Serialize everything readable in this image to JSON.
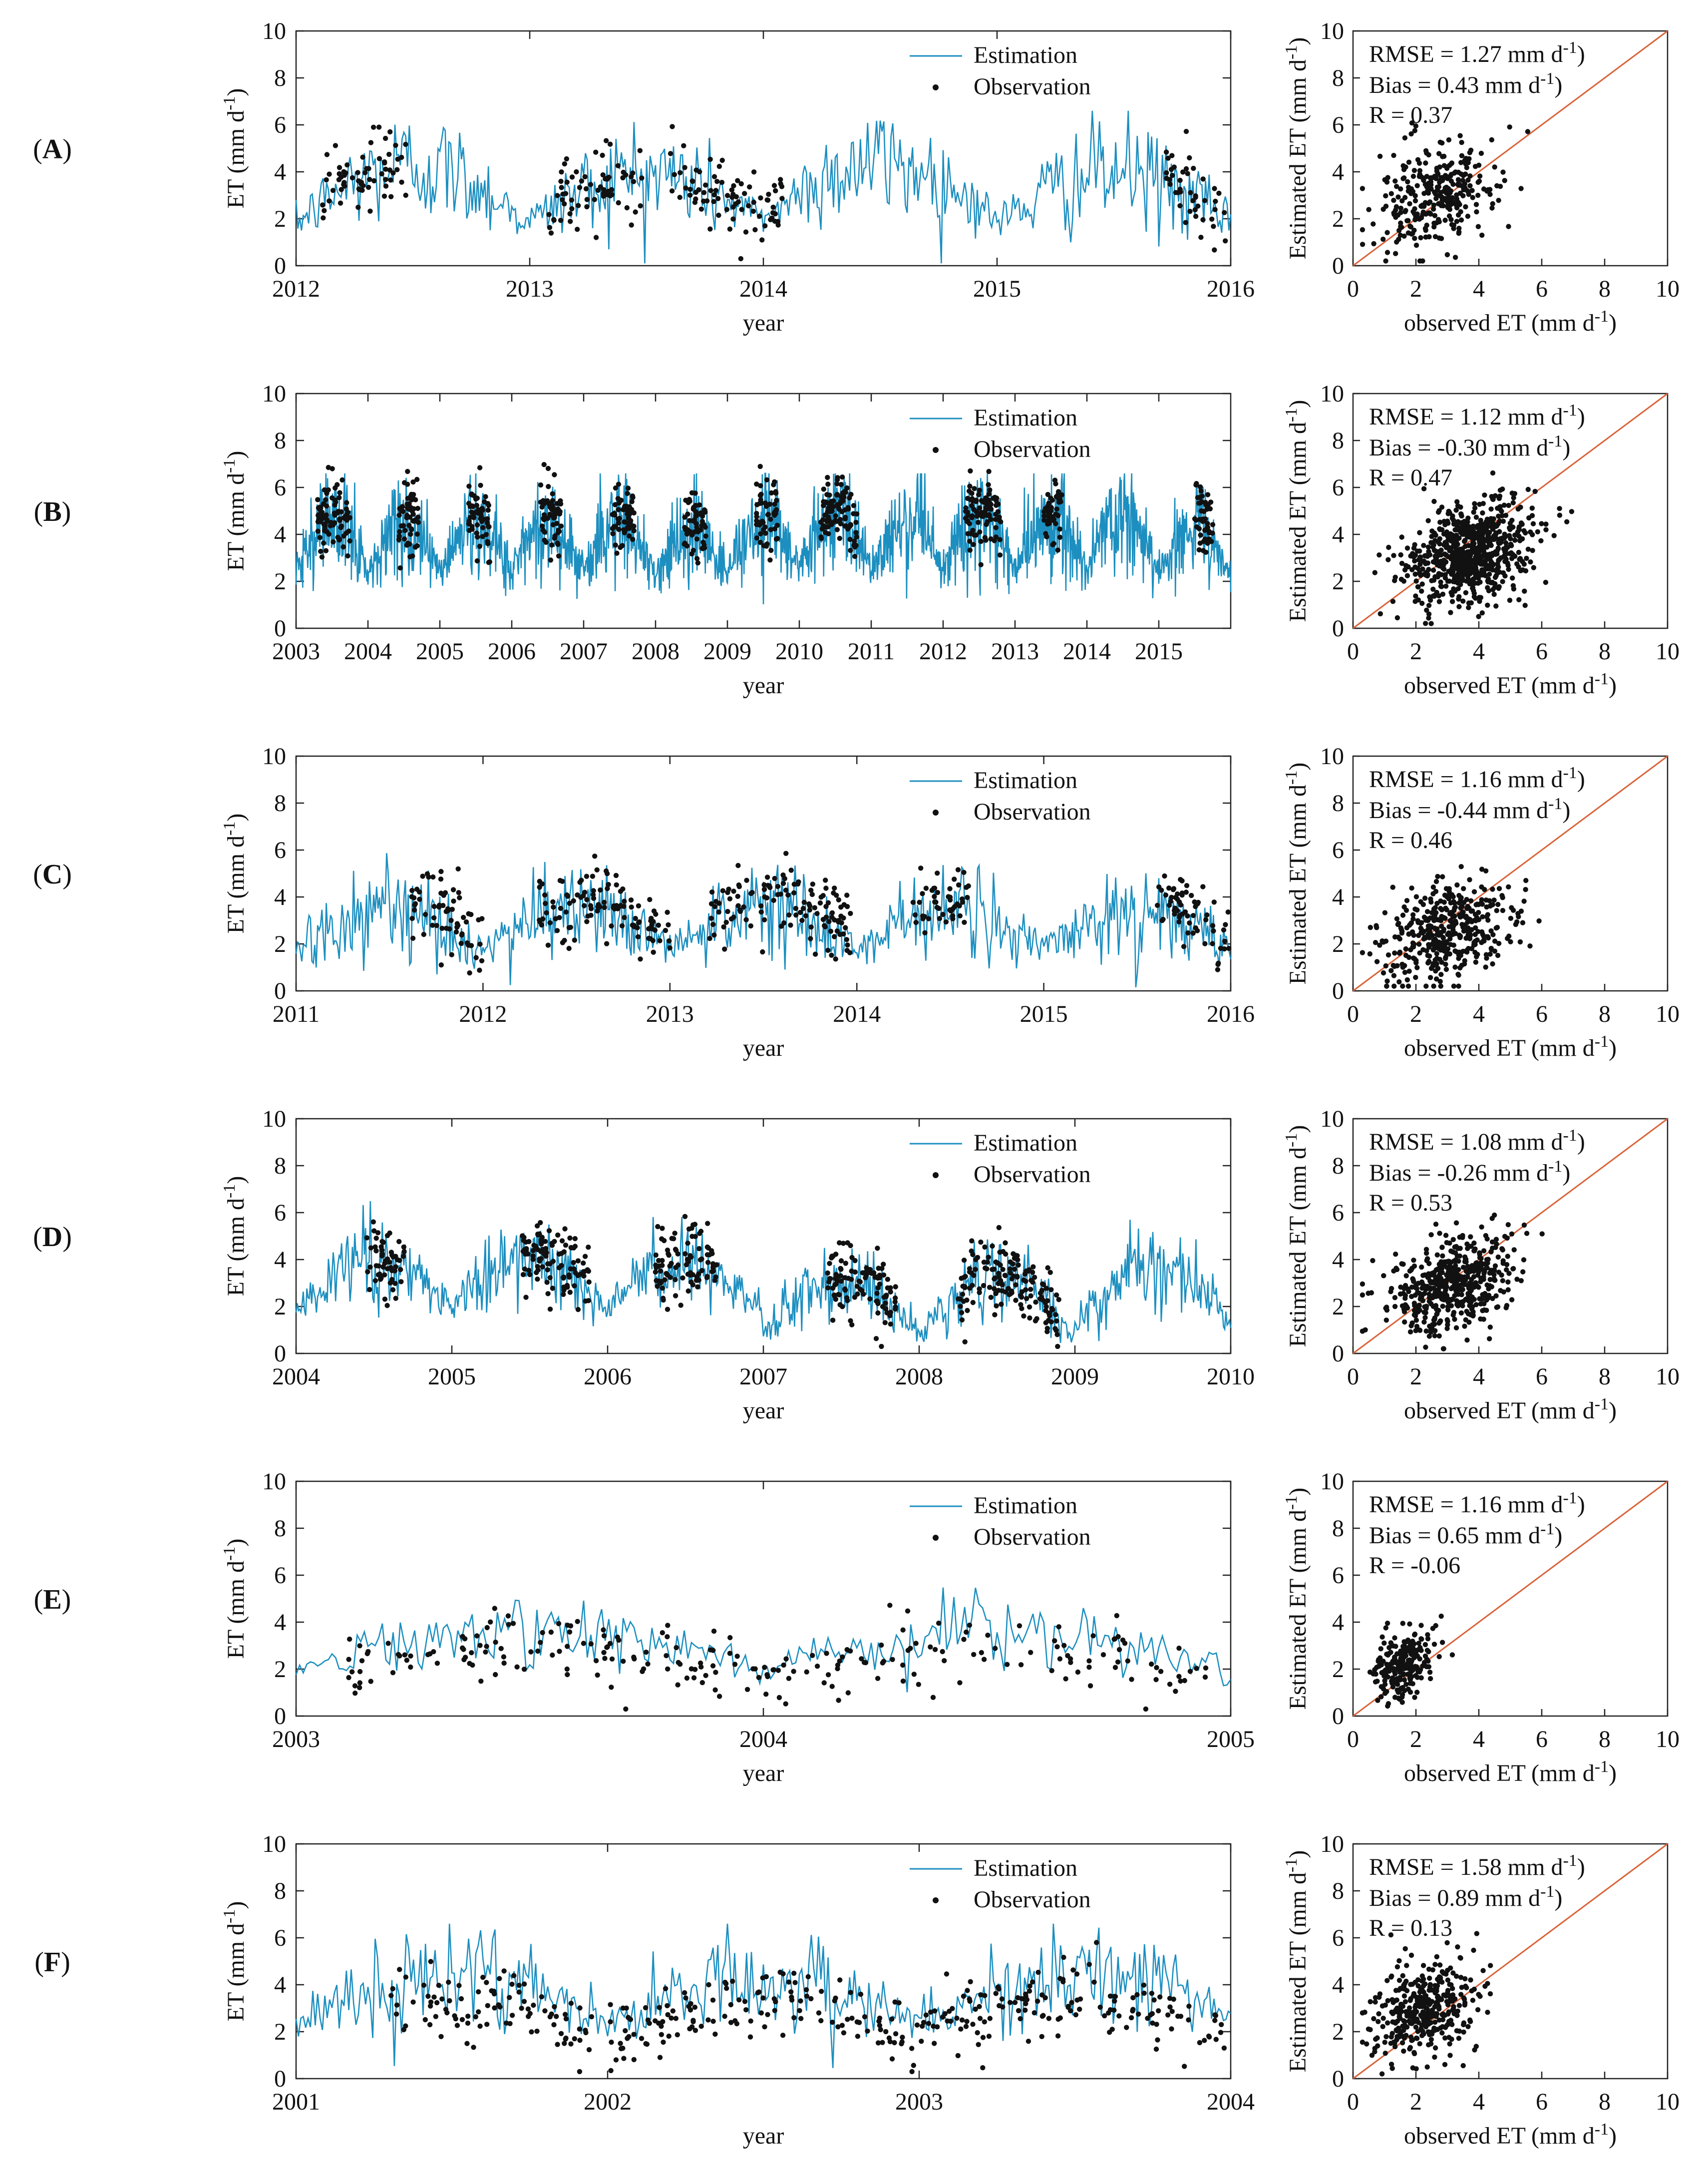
{
  "figure": {
    "ts_ylabel": "ET (mm d",
    "ts_xlabel": "year",
    "sc_ylabel": "Estimated ET (mm d",
    "sc_xlabel": "observed ET (mm d",
    "unit_sup": "-1",
    "unit_close": ")",
    "legend_estimation": "Estimation",
    "legend_observation": "Observation",
    "colors": {
      "estimation": "#1c8fc0",
      "observation": "#111111",
      "one_to_one": "#d9643a",
      "axis": "#222222"
    }
  },
  "chart_data": [
    {
      "type": "line",
      "panel": "A",
      "title": "",
      "xlabel": "year",
      "ylabel": "ET (mm d-1)",
      "ylim": [
        0,
        10
      ],
      "yticks": [
        0,
        2,
        4,
        6,
        8,
        10
      ],
      "xticks": [
        "2012",
        "2013",
        "2014",
        "2015",
        "2016"
      ],
      "legend_position": "top-right",
      "series": [
        {
          "name": "Estimation",
          "style": "line",
          "seasonal": {
            "amp": [
              2.0,
              1.6,
              1.9,
              1.7
            ],
            "offset": [
              1.8,
              1.9,
              2.0,
              1.8
            ],
            "noise": 0.9
          }
        },
        {
          "name": "Observation",
          "style": "dots",
          "coverage": [
            [
              0.1,
              0.48
            ],
            [
              1.08,
              1.48
            ],
            [
              1.6,
              2.08
            ],
            [
              3.72,
              3.98
            ]
          ],
          "count": 260,
          "shift": 0.2
        }
      ],
      "stats": {
        "rmse": "RMSE = 1.27 mm d",
        "bias": "Bias = 0.43 mm d",
        "r": "R = 0.37"
      },
      "scatter": {
        "xlabel": "observed ET (mm d-1)",
        "ylabel": "Estimated ET (mm d-1)",
        "xlim": [
          0,
          10
        ],
        "ylim": [
          0,
          10
        ],
        "one_to_one": true,
        "center": [
          2.6,
          3.0
        ],
        "spread": [
          0.95,
          1.05
        ],
        "count": 320
      }
    },
    {
      "type": "line",
      "panel": "B",
      "title": "",
      "xlabel": "year",
      "ylabel": "ET (mm d-1)",
      "ylim": [
        0,
        10
      ],
      "yticks": [
        0,
        2,
        4,
        6,
        8,
        10
      ],
      "xticks": [
        "2003",
        "2004",
        "2005",
        "2006",
        "2007",
        "2008",
        "2009",
        "2010",
        "2011",
        "2012",
        "2013",
        "2014",
        "2015"
      ],
      "legend_position": "top-right",
      "series": [
        {
          "name": "Estimation",
          "style": "line",
          "seasonal": {
            "amp": [
              1.7,
              1.6,
              1.8,
              1.6,
              1.8,
              1.5,
              1.7,
              1.9,
              1.6,
              1.8,
              1.7,
              1.8,
              1.6
            ],
            "offset": [
              2.4,
              2.4,
              2.3,
              2.4,
              2.3,
              2.2,
              2.4,
              2.5,
              2.4,
              2.4,
              2.4,
              2.5,
              2.3
            ],
            "noise": 0.9
          }
        },
        {
          "name": "Observation",
          "style": "dots",
          "coverage": [
            [
              0.3,
              0.75
            ],
            [
              1.4,
              1.7
            ],
            [
              2.4,
              2.7
            ],
            [
              3.4,
              3.7
            ],
            [
              4.4,
              4.7
            ],
            [
              5.4,
              5.7
            ],
            [
              6.4,
              6.7
            ],
            [
              7.3,
              7.8
            ],
            [
              9.3,
              9.8
            ],
            [
              10.4,
              10.65
            ],
            [
              12.5,
              12.75
            ]
          ],
          "count": 700,
          "shift": 0.6
        }
      ],
      "stats": {
        "rmse": "RMSE = 1.12 mm d",
        "bias": "Bias = -0.30 mm d",
        "r": "R = 0.47"
      },
      "scatter": {
        "xlabel": "observed ET (mm d-1)",
        "ylabel": "Estimated ET (mm d-1)",
        "xlim": [
          0,
          10
        ],
        "ylim": [
          0,
          10
        ],
        "one_to_one": true,
        "center": [
          3.7,
          3.2
        ],
        "spread": [
          1.0,
          1.0
        ],
        "count": 750
      }
    },
    {
      "type": "line",
      "panel": "C",
      "title": "",
      "xlabel": "year",
      "ylabel": "ET (mm d-1)",
      "ylim": [
        0,
        10
      ],
      "yticks": [
        0,
        2,
        4,
        6,
        8,
        10
      ],
      "xticks": [
        "2011",
        "2012",
        "2013",
        "2014",
        "2015",
        "2016"
      ],
      "legend_position": "top-right",
      "series": [
        {
          "name": "Estimation",
          "style": "line",
          "seasonal": {
            "amp": [
              1.6,
              1.4,
              1.5,
              1.4,
              1.6
            ],
            "offset": [
              1.6,
              1.7,
              1.7,
              1.6,
              1.6
            ],
            "noise": 0.8
          }
        },
        {
          "name": "Observation",
          "style": "dots",
          "coverage": [
            [
              0.6,
              1.0
            ],
            [
              1.3,
              2.0
            ],
            [
              2.2,
              2.98
            ],
            [
              3.3,
              3.6
            ],
            [
              4.6,
              5.0
            ]
          ],
          "count": 420,
          "shift": 0.6
        }
      ],
      "stats": {
        "rmse": "RMSE = 1.16 mm d",
        "bias": "Bias = -0.44 mm d",
        "r": "R = 0.46"
      },
      "scatter": {
        "xlabel": "observed ET (mm d-1)",
        "ylabel": "Estimated ET (mm d-1)",
        "xlim": [
          0,
          10
        ],
        "ylim": [
          0,
          10
        ],
        "one_to_one": true,
        "center": [
          3.0,
          2.5
        ],
        "spread": [
          1.0,
          1.0
        ],
        "count": 420
      }
    },
    {
      "type": "line",
      "panel": "D",
      "title": "",
      "xlabel": "year",
      "ylabel": "ET (mm d-1)",
      "ylim": [
        0,
        10
      ],
      "yticks": [
        0,
        2,
        4,
        6,
        8,
        10
      ],
      "xticks": [
        "2004",
        "2005",
        "2006",
        "2007",
        "2008",
        "2009",
        "2010"
      ],
      "legend_position": "top-right",
      "series": [
        {
          "name": "Estimation",
          "style": "line",
          "seasonal": {
            "amp": [
              1.6,
              1.8,
              1.6,
              2.0,
              2.0,
              1.9
            ],
            "offset": [
              1.9,
              1.9,
              1.9,
              0.7,
              0.7,
              1.3
            ],
            "noise": 0.7
          }
        },
        {
          "name": "Observation",
          "style": "dots",
          "coverage": [
            [
              0.45,
              0.7
            ],
            [
              1.45,
              1.9
            ],
            [
              2.3,
              2.7
            ],
            [
              3.4,
              3.85
            ],
            [
              4.25,
              4.9
            ]
          ],
          "count": 520,
          "shift": 0.3
        }
      ],
      "stats": {
        "rmse": "RMSE = 1.08 mm d",
        "bias": "Bias = -0.26 mm d",
        "r": "R = 0.53"
      },
      "scatter": {
        "xlabel": "observed ET (mm d-1)",
        "ylabel": "Estimated ET (mm d-1)",
        "xlim": [
          0,
          10
        ],
        "ylim": [
          0,
          10
        ],
        "one_to_one": true,
        "center": [
          3.2,
          2.9
        ],
        "spread": [
          1.0,
          1.0
        ],
        "count": 520
      }
    },
    {
      "type": "line",
      "panel": "E",
      "title": "",
      "xlabel": "year",
      "ylabel": "ET (mm d-1)",
      "ylim": [
        0,
        10
      ],
      "yticks": [
        0,
        2,
        4,
        6,
        8,
        10
      ],
      "xticks": [
        "2003",
        "2004",
        "2005"
      ],
      "legend_position": "top-right",
      "series": [
        {
          "name": "Estimation",
          "style": "line",
          "seasonal": {
            "amp": [
              1.3,
              1.2
            ],
            "offset": [
              2.0,
              2.0
            ],
            "noise": 0.6
          }
        },
        {
          "name": "Observation",
          "style": "dots",
          "coverage": [
            [
              0.1,
              1.95
            ]
          ],
          "count": 230,
          "shift": -0.6
        }
      ],
      "stats": {
        "rmse": "RMSE = 1.16 mm d",
        "bias": "Bias = 0.65 mm d",
        "r": "R = -0.06"
      },
      "scatter": {
        "xlabel": "observed ET (mm d-1)",
        "ylabel": "Estimated ET (mm d-1)",
        "xlim": [
          0,
          10
        ],
        "ylim": [
          0,
          10
        ],
        "one_to_one": true,
        "center": [
          1.6,
          2.2
        ],
        "spread": [
          0.45,
          0.7
        ],
        "count": 230
      }
    },
    {
      "type": "line",
      "panel": "F",
      "title": "",
      "xlabel": "year",
      "ylabel": "ET (mm d-1)",
      "ylim": [
        0,
        10
      ],
      "yticks": [
        0,
        2,
        4,
        6,
        8,
        10
      ],
      "xticks": [
        "2001",
        "2002",
        "2003",
        "2004"
      ],
      "legend_position": "top-right",
      "series": [
        {
          "name": "Estimation",
          "style": "line",
          "seasonal": {
            "amp": [
              1.7,
              1.6,
              1.7
            ],
            "offset": [
              2.4,
              2.4,
              2.5
            ],
            "noise": 0.9
          }
        },
        {
          "name": "Observation",
          "style": "dots",
          "coverage": [
            [
              0.3,
              0.95
            ],
            [
              1.0,
              2.98
            ]
          ],
          "count": 380,
          "shift": -0.9
        }
      ],
      "stats": {
        "rmse": "RMSE = 1.58 mm d",
        "bias": "Bias = 0.89 mm d",
        "r": "R = 0.13"
      },
      "scatter": {
        "xlabel": "observed ET (mm d-1)",
        "ylabel": "Estimated ET (mm d-1)",
        "xlim": [
          0,
          10
        ],
        "ylim": [
          0,
          10
        ],
        "one_to_one": true,
        "center": [
          2.3,
          3.0
        ],
        "spread": [
          0.8,
          1.0
        ],
        "count": 380
      }
    }
  ]
}
